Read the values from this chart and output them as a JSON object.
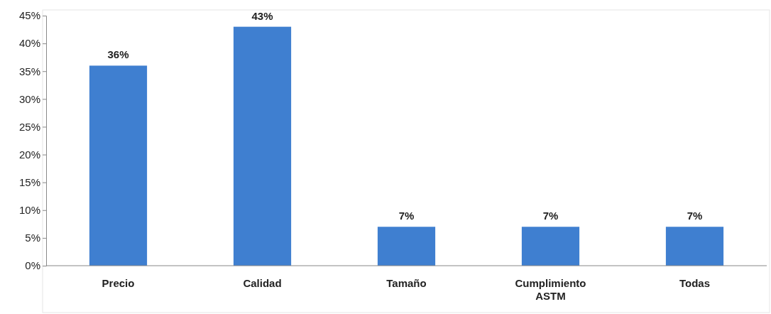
{
  "chart_data": {
    "type": "bar",
    "categories": [
      "Precio",
      "Calidad",
      "Tamaño",
      "Cumplimiento ASTM",
      "Todas"
    ],
    "values": [
      36,
      43,
      7,
      7,
      7
    ],
    "value_labels": [
      "36%",
      "43%",
      "7%",
      "7%",
      "7%"
    ],
    "color": "#3f7fd0",
    "ylim": [
      0,
      45
    ],
    "yticks": [
      {
        "value": 0,
        "label": "0%"
      },
      {
        "value": 5,
        "label": "5%"
      },
      {
        "value": 10,
        "label": "10%"
      },
      {
        "value": 15,
        "label": "15%"
      },
      {
        "value": 20,
        "label": "20%"
      },
      {
        "value": 25,
        "label": "25%"
      },
      {
        "value": 30,
        "label": "30%"
      },
      {
        "value": 35,
        "label": "35%"
      },
      {
        "value": 40,
        "label": "40%"
      },
      {
        "value": 45,
        "label": "45%"
      }
    ]
  }
}
